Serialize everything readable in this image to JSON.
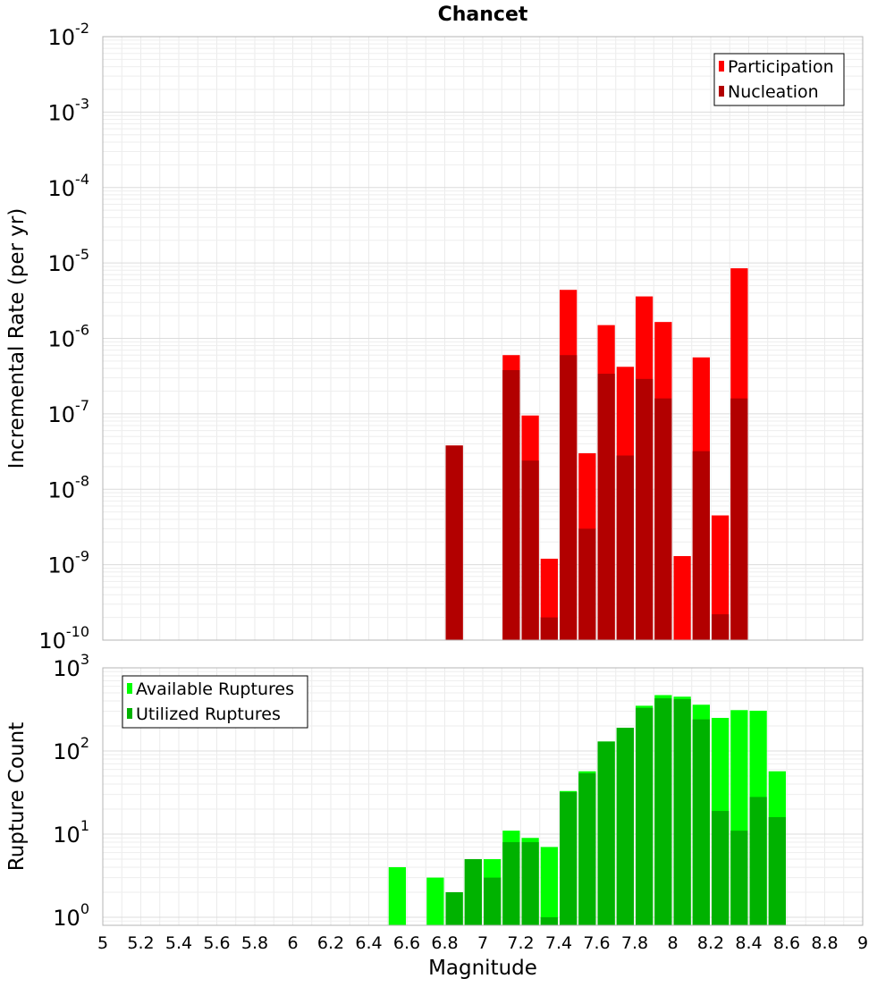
{
  "chart_data": [
    {
      "type": "bar",
      "title": "Chancet",
      "xlabel": "",
      "ylabel": "Incremental Rate (per yr)",
      "xlim": [
        5,
        9
      ],
      "ylim": [
        1e-10,
        0.01
      ],
      "yscale": "log",
      "ytick_labels": [
        {
          "base": "10",
          "exp": "-10"
        },
        {
          "base": "10",
          "exp": "-9"
        },
        {
          "base": "10",
          "exp": "-8"
        },
        {
          "base": "10",
          "exp": "-7"
        },
        {
          "base": "10",
          "exp": "-6"
        },
        {
          "base": "10",
          "exp": "-5"
        },
        {
          "base": "10",
          "exp": "-4"
        },
        {
          "base": "10",
          "exp": "-3"
        },
        {
          "base": "10",
          "exp": "-2"
        }
      ],
      "grid": true,
      "legend_position": "top-right",
      "bar_width": 0.1,
      "x": [
        6.85,
        7.15,
        7.25,
        7.35,
        7.45,
        7.55,
        7.65,
        7.75,
        7.85,
        7.95,
        8.05,
        8.15,
        8.25,
        8.35
      ],
      "series": [
        {
          "name": "Participation",
          "color": "#ff0000",
          "values": [
            3.8e-08,
            6e-07,
            9.5e-08,
            1.2e-09,
            4.4e-06,
            3e-08,
            1.5e-06,
            4.2e-07,
            3.6e-06,
            1.65e-06,
            1.3e-09,
            5.6e-07,
            4.5e-09,
            8.5e-06
          ]
        },
        {
          "name": "Nucleation",
          "color": "#b20000",
          "values": [
            3.8e-08,
            3.8e-07,
            2.4e-08,
            2e-10,
            6e-07,
            3e-09,
            3.4e-07,
            2.8e-08,
            2.9e-07,
            1.6e-07,
            null,
            3.2e-08,
            2.2e-10,
            1.6e-07
          ]
        }
      ]
    },
    {
      "type": "bar",
      "title": "",
      "xlabel": "Magnitude",
      "ylabel": "Rupture Count",
      "xlim": [
        5,
        9
      ],
      "ylim": [
        0.8,
        1000
      ],
      "yscale": "log",
      "ytick_labels": [
        {
          "base": "10",
          "exp": "0"
        },
        {
          "base": "10",
          "exp": "1"
        },
        {
          "base": "10",
          "exp": "2"
        },
        {
          "base": "10",
          "exp": "3"
        }
      ],
      "xtick_labels": [
        "5",
        "5.2",
        "5.4",
        "5.6",
        "5.8",
        "6",
        "6.2",
        "6.4",
        "6.6",
        "6.8",
        "7",
        "7.2",
        "7.4",
        "7.6",
        "7.8",
        "8",
        "8.2",
        "8.4",
        "8.6",
        "8.8",
        "9"
      ],
      "grid": true,
      "legend_position": "top-left",
      "bar_width": 0.1,
      "x": [
        6.55,
        6.75,
        6.85,
        6.95,
        7.05,
        7.15,
        7.25,
        7.35,
        7.45,
        7.55,
        7.65,
        7.75,
        7.85,
        7.95,
        8.05,
        8.15,
        8.25,
        8.35,
        8.45,
        8.55
      ],
      "series": [
        {
          "name": "Available Ruptures",
          "color": "#00ff00",
          "values": [
            4,
            3,
            2,
            5,
            5,
            11,
            9,
            7,
            33,
            57,
            130,
            190,
            350,
            470,
            450,
            360,
            250,
            310,
            305,
            57
          ]
        },
        {
          "name": "Utilized Ruptures",
          "color": "#00b200",
          "values": [
            null,
            null,
            2,
            5,
            3,
            8,
            8,
            1,
            32,
            54,
            130,
            190,
            330,
            430,
            420,
            240,
            19,
            11,
            28,
            16
          ]
        }
      ]
    }
  ]
}
